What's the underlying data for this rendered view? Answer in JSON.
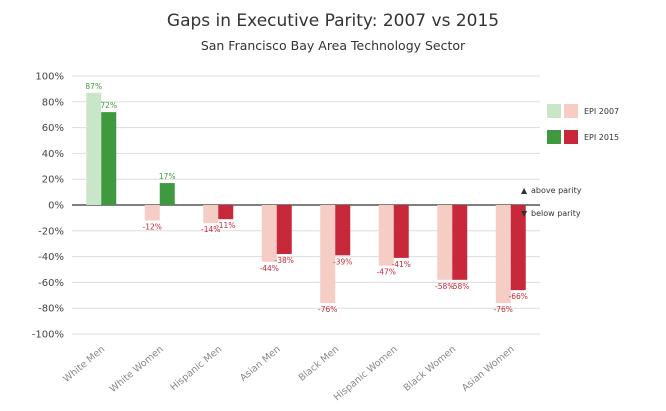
{
  "chart_data": {
    "type": "bar",
    "title": "Gaps in Executive Parity: 2007 vs 2015",
    "subtitle": "San Francisco Bay Area Technology Sector",
    "categories": [
      "White Men",
      "White Women",
      "Hispanic Men",
      "Asian Men",
      "Black Men",
      "Hispanic Women",
      "Black Women",
      "Asian Women"
    ],
    "series": [
      {
        "name": "EPI 2007",
        "values": [
          87,
          -12,
          -14,
          -44,
          -76,
          -47,
          -58,
          -76
        ],
        "labels": [
          "87%",
          "-12%",
          "-14%",
          "-44%",
          "-76%",
          "-47%",
          "-58%",
          "-76%"
        ],
        "color_positive": "#c9e6c9",
        "color_negative": "#f5cdc5"
      },
      {
        "name": "EPI 2015",
        "values": [
          72,
          17,
          -11,
          -38,
          -39,
          -41,
          -58,
          -66
        ],
        "labels": [
          "72%",
          "17%",
          "-11%",
          "-38%",
          "-39%",
          "-41%",
          "-58%",
          "-66%"
        ],
        "color_positive": "#3f9a3f",
        "color_negative": "#c8293a"
      }
    ],
    "ylim": [
      -100,
      100
    ],
    "yticks": [
      100,
      80,
      60,
      40,
      20,
      0,
      -20,
      -40,
      -60,
      -80,
      -100
    ],
    "ytick_labels": [
      "100%",
      "80%",
      "60%",
      "40%",
      "20%",
      "0%",
      "-20%",
      "-40%",
      "-60%",
      "-80%",
      "-100%"
    ],
    "grid": true,
    "legend_position": "right",
    "annotations": [
      {
        "text": "above parity",
        "symbol": "▲",
        "color": "#3f9a3f"
      },
      {
        "text": "below parity",
        "symbol": "▼",
        "color": "#c8293a"
      }
    ],
    "colors": {
      "grid": "#dddddd",
      "zero_line": "#333333",
      "label_positive": "#3f9a3f",
      "label_negative": "#c8293a"
    }
  }
}
